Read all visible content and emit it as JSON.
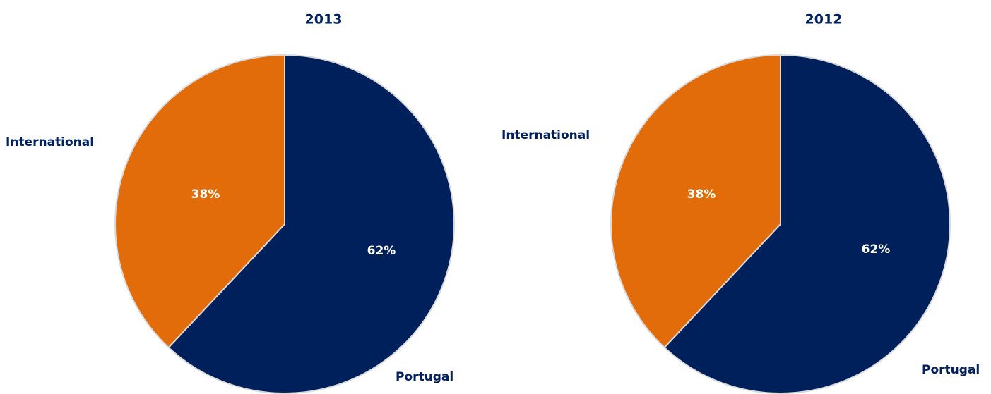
{
  "chart_data": [
    {
      "type": "pie",
      "title": "2013",
      "categories": [
        "Portugal",
        "International"
      ],
      "values": [
        62,
        38
      ],
      "value_labels": [
        "62%",
        "38%"
      ],
      "colors": [
        "#00205b",
        "#e36c0a"
      ]
    },
    {
      "type": "pie",
      "title": "2012",
      "categories": [
        "Portugal",
        "International"
      ],
      "values": [
        62,
        38
      ],
      "value_labels": [
        "62%",
        "38%"
      ],
      "colors": [
        "#00205b",
        "#e36c0a"
      ]
    }
  ]
}
